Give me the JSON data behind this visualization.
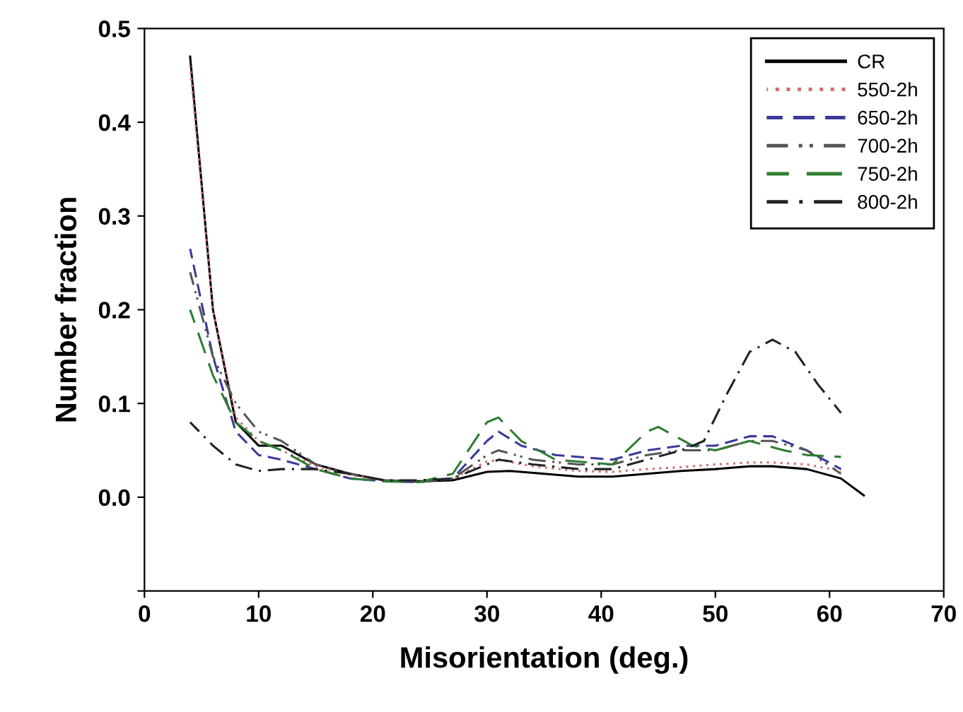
{
  "chart_data": {
    "type": "line",
    "xlabel": "Misorientation (deg.)",
    "ylabel": "Number fraction",
    "xlim": [
      0,
      70
    ],
    "xticks": [
      0,
      10,
      20,
      30,
      40,
      50,
      60,
      70
    ],
    "ylim": [
      -0.1,
      0.5
    ],
    "yticks": [
      {
        "value": -0.1,
        "label": null
      },
      "0.0",
      0.1,
      0.2,
      0.3,
      0.4,
      0.5
    ],
    "legend": "top right",
    "grid": false,
    "marker": "none",
    "series": [
      {
        "name": "CR",
        "color": "#000000",
        "line_style": "solid",
        "x": [
          4,
          6,
          8,
          10,
          12,
          15,
          18,
          21,
          24,
          27,
          30,
          32,
          35,
          38,
          41,
          44,
          47,
          50,
          53,
          55,
          58,
          61,
          63
        ],
        "values": [
          0.47,
          0.2,
          0.08,
          0.055,
          0.055,
          0.035,
          0.025,
          0.018,
          0.017,
          0.018,
          0.027,
          0.028,
          0.025,
          0.022,
          0.022,
          0.025,
          0.028,
          0.03,
          0.033,
          0.033,
          0.03,
          0.02,
          0.002
        ]
      },
      {
        "name": "550-2h",
        "color": "#d07070",
        "line_style": "dotted",
        "x": [
          4,
          6,
          8,
          10,
          12,
          15,
          18,
          21,
          24,
          27,
          30,
          31,
          34,
          38,
          41,
          44,
          47,
          50,
          53,
          55,
          58,
          61
        ],
        "values": [
          0.46,
          0.2,
          0.085,
          0.06,
          0.05,
          0.033,
          0.024,
          0.018,
          0.017,
          0.02,
          0.038,
          0.04,
          0.033,
          0.028,
          0.027,
          0.03,
          0.032,
          0.035,
          0.037,
          0.037,
          0.035,
          0.028
        ]
      },
      {
        "name": "650-2h",
        "color": "#3a3a9a",
        "line_style": "dashed",
        "x": [
          4,
          6,
          8,
          10,
          12,
          15,
          18,
          21,
          24,
          27,
          30,
          31,
          33,
          36,
          41,
          44,
          47,
          50,
          53,
          55,
          58,
          61
        ],
        "values": [
          0.265,
          0.15,
          0.07,
          0.045,
          0.04,
          0.03,
          0.02,
          0.017,
          0.016,
          0.02,
          0.06,
          0.07,
          0.055,
          0.045,
          0.04,
          0.05,
          0.055,
          0.055,
          0.065,
          0.065,
          0.05,
          0.03
        ]
      },
      {
        "name": "700-2h",
        "color": "#555555",
        "line_style": "dashdotdot",
        "x": [
          4,
          6,
          8,
          10,
          12,
          15,
          18,
          21,
          24,
          27,
          30,
          31,
          34,
          38,
          41,
          44,
          47,
          50,
          53,
          55,
          58,
          61
        ],
        "values": [
          0.24,
          0.15,
          0.1,
          0.07,
          0.06,
          0.035,
          0.025,
          0.018,
          0.016,
          0.02,
          0.045,
          0.05,
          0.04,
          0.035,
          0.035,
          0.045,
          0.05,
          0.05,
          0.06,
          0.06,
          0.05,
          0.025
        ]
      },
      {
        "name": "750-2h",
        "color": "#2e7d32",
        "line_style": "longdash",
        "x": [
          4,
          6,
          8,
          10,
          12,
          15,
          18,
          21,
          24,
          27,
          30,
          31,
          33,
          36,
          41,
          44,
          45,
          48,
          50,
          53,
          56,
          58,
          61
        ],
        "values": [
          0.2,
          0.13,
          0.08,
          0.06,
          0.05,
          0.03,
          0.02,
          0.017,
          0.016,
          0.025,
          0.08,
          0.085,
          0.06,
          0.04,
          0.035,
          0.07,
          0.075,
          0.055,
          0.05,
          0.06,
          0.05,
          0.045,
          0.043
        ]
      },
      {
        "name": "800-2h",
        "color": "#222222",
        "line_style": "dashdot",
        "x": [
          4,
          6,
          8,
          10,
          12,
          15,
          18,
          21,
          24,
          27,
          30,
          31,
          34,
          38,
          41,
          44,
          47,
          49,
          51,
          53,
          55,
          57,
          59,
          61
        ],
        "values": [
          0.08,
          0.055,
          0.035,
          0.028,
          0.03,
          0.03,
          0.025,
          0.018,
          0.018,
          0.02,
          0.035,
          0.04,
          0.035,
          0.03,
          0.03,
          0.04,
          0.05,
          0.06,
          0.11,
          0.155,
          0.168,
          0.155,
          0.12,
          0.09
        ]
      }
    ]
  }
}
